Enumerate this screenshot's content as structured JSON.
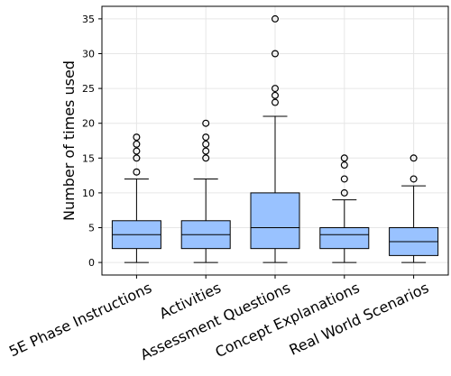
{
  "chart_data": {
    "type": "box",
    "ylabel": "Number of times used",
    "ylim": [
      -1.8,
      36.8
    ],
    "yticks": [
      0,
      5,
      10,
      15,
      20,
      25,
      30,
      35
    ],
    "grid": true,
    "colors": {
      "box_fill": "#99c2ff",
      "box_edge": "#000000",
      "grid": "#e6e6e6",
      "axis": "#000000"
    },
    "categories": [
      "5E Phase Instructions",
      "Activities",
      "Assessment Questions",
      "Concept Explanations",
      "Real World Scenarios"
    ],
    "boxes": [
      {
        "min": 0,
        "q1": 2,
        "median": 4,
        "q3": 6,
        "max": 12,
        "outliers": [
          13,
          15,
          16,
          17,
          18
        ]
      },
      {
        "min": 0,
        "q1": 2,
        "median": 4,
        "q3": 6,
        "max": 12,
        "outliers": [
          15,
          16,
          17,
          18,
          20
        ]
      },
      {
        "min": 0,
        "q1": 2,
        "median": 5,
        "q3": 10,
        "max": 21,
        "outliers": [
          23,
          24,
          25,
          30,
          35
        ]
      },
      {
        "min": 0,
        "q1": 2,
        "median": 4,
        "q3": 5,
        "max": 9,
        "outliers": [
          10,
          12,
          14,
          15
        ]
      },
      {
        "min": 0,
        "q1": 1,
        "median": 3,
        "q3": 5,
        "max": 11,
        "outliers": [
          12,
          15
        ]
      }
    ]
  }
}
